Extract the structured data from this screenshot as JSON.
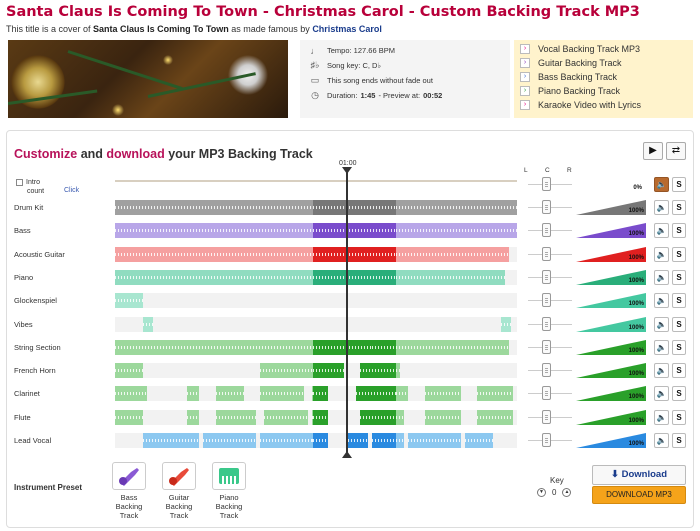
{
  "header": {
    "title": "Santa Claus Is Coming To Town - Christmas Carol - Custom Backing Track MP3",
    "subtitle_prefix": "This title is a cover of",
    "subtitle_song": "Santa Claus Is Coming To Town",
    "subtitle_middle": "as made famous by",
    "subtitle_artist": "Christmas Carol"
  },
  "info": {
    "tempo": "Tempo: 127.66 BPM",
    "key": "Song key: C, D♭",
    "ending": "This song ends without fade out",
    "duration_label": "Duration:",
    "duration": "1:45",
    "preview_label": "- Preview at:",
    "preview": "00:52"
  },
  "links": [
    {
      "label": "Vocal Backing Track MP3",
      "color": "#e6007e"
    },
    {
      "label": "Guitar Backing Track",
      "color": "#8a3ab9"
    },
    {
      "label": "Bass Backing Track",
      "color": "#3a6ad4"
    },
    {
      "label": "Piano Backing Track",
      "color": "#2a9a3a"
    },
    {
      "label": "Karaoke Video with Lyrics",
      "color": "#e6007e"
    }
  ],
  "mixer": {
    "headline_1": "Customize",
    "headline_2": "and",
    "headline_3": "download",
    "headline_4": "your MP3 Backing Track",
    "time_marker": "01:00",
    "intro_label_1": "Intro",
    "intro_label_2": "count",
    "click_label": "Click",
    "click_volume": "0%",
    "pan_L": "L",
    "pan_C": "C",
    "pan_R": "R"
  },
  "tracks": [
    {
      "name": "Drum Kit",
      "volume": "100%",
      "color": "#a0a0a0",
      "dark": "#777777",
      "muted": false
    },
    {
      "name": "Bass",
      "volume": "100%",
      "color": "#b8a6e8",
      "dark": "#7a4ccc",
      "muted": false
    },
    {
      "name": "Acoustic Guitar",
      "volume": "100%",
      "color": "#f5a0a0",
      "dark": "#e02020",
      "muted": false
    },
    {
      "name": "Piano",
      "volume": "100%",
      "color": "#90dcc0",
      "dark": "#2aae7a",
      "muted": false
    },
    {
      "name": "Glockenspiel",
      "volume": "100%",
      "color": "#a8e6d0",
      "dark": "#44c8a0",
      "muted": false
    },
    {
      "name": "Vibes",
      "volume": "100%",
      "color": "#a8e6d0",
      "dark": "#44c8a0",
      "muted": false
    },
    {
      "name": "String Section",
      "volume": "100%",
      "color": "#9cd89c",
      "dark": "#2aa02a",
      "muted": false
    },
    {
      "name": "French Horn",
      "volume": "100%",
      "color": "#9cd89c",
      "dark": "#2aa02a",
      "muted": false
    },
    {
      "name": "Clarinet",
      "volume": "100%",
      "color": "#9cd89c",
      "dark": "#2aa02a",
      "muted": false
    },
    {
      "name": "Flute",
      "volume": "100%",
      "color": "#9cd89c",
      "dark": "#2aa02a",
      "muted": false
    },
    {
      "name": "Lead Vocal",
      "volume": "100%",
      "color": "#8cc8f0",
      "dark": "#2a8ae0",
      "muted": false
    }
  ],
  "presets": {
    "label": "Instrument Preset",
    "items": [
      {
        "line1": "Bass",
        "line2": "Backing",
        "line3": "Track",
        "icon": "bass-guitar-icon"
      },
      {
        "line1": "Guitar",
        "line2": "Backing",
        "line3": "Track",
        "icon": "electric-guitar-icon"
      },
      {
        "line1": "Piano",
        "line2": "Backing",
        "line3": "Track",
        "icon": "piano-keys-icon"
      }
    ]
  },
  "key_control": {
    "label": "Key",
    "value": "0"
  },
  "download": {
    "button": "Download",
    "mp3": "DOWNLOAD MP3"
  }
}
